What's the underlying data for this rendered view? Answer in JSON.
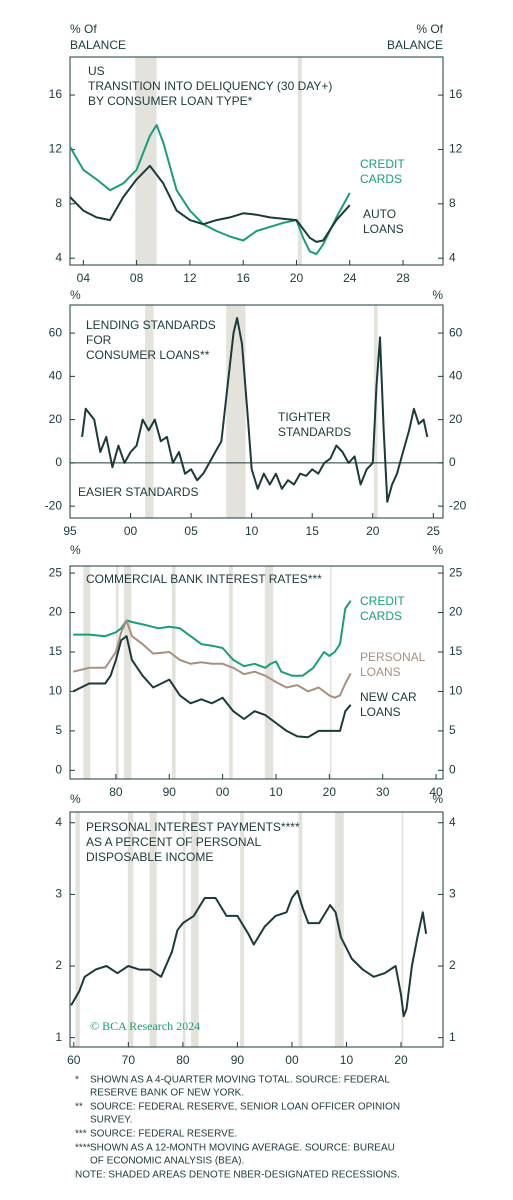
{
  "chart_data": [
    {
      "type": "line",
      "title": [
        "US",
        "TRANSITION INTO DELIQUENCY (30 DAY+)",
        "BY CONSUMER LOAN TYPE*"
      ],
      "y_label": [
        "% Of",
        "BALANCE"
      ],
      "y2_label": [
        "% Of",
        "BALANCE"
      ],
      "xlim": [
        2003,
        2031
      ],
      "xticks": [
        {
          "value": 2004,
          "label": "04"
        },
        {
          "value": 2008,
          "label": "08"
        },
        {
          "value": 2012,
          "label": "12"
        },
        {
          "value": 2016,
          "label": "16"
        },
        {
          "value": 2020,
          "label": "20"
        },
        {
          "value": 2024,
          "label": "24"
        },
        {
          "value": 2028,
          "label": "28"
        }
      ],
      "ylim": [
        3.5,
        18.8
      ],
      "yticks": [
        4,
        8,
        12,
        16
      ],
      "y2lim": [
        3.5,
        18.8
      ],
      "y2ticks": [
        4,
        8,
        12,
        16
      ],
      "recession_color": "#e3e3dc",
      "recessions": [
        [
          2007.9,
          2009.5
        ],
        [
          2020.1,
          2020.4
        ]
      ],
      "series": [
        {
          "name": [
            "CREDIT",
            "CARDS"
          ],
          "color": "#1a9e7a",
          "x": [
            2003,
            2004,
            2005,
            2006,
            2007,
            2008,
            2009,
            2009.5,
            2010,
            2011,
            2012,
            2013,
            2014,
            2015,
            2016,
            2017,
            2018,
            2019,
            2020,
            2020.5,
            2021,
            2021.5,
            2022,
            2023,
            2024
          ],
          "values": [
            12.2,
            10.5,
            9.8,
            9.0,
            9.5,
            10.5,
            13.0,
            13.8,
            12.5,
            9.0,
            7.5,
            6.5,
            6.0,
            5.6,
            5.3,
            6.0,
            6.3,
            6.6,
            6.8,
            5.5,
            4.5,
            4.3,
            5.0,
            7.0,
            8.8
          ]
        },
        {
          "name": [
            "AUTO",
            "LOANS"
          ],
          "color": "#1b3a3a",
          "x": [
            2003,
            2004,
            2005,
            2006,
            2007,
            2008,
            2009,
            2010,
            2011,
            2012,
            2013,
            2014,
            2015,
            2016,
            2017,
            2018,
            2019,
            2020,
            2021,
            2021.5,
            2022,
            2023,
            2024
          ],
          "values": [
            8.5,
            7.5,
            7.0,
            6.8,
            8.5,
            9.8,
            10.8,
            9.5,
            7.5,
            6.8,
            6.5,
            6.8,
            7.0,
            7.3,
            7.2,
            7.0,
            6.9,
            6.8,
            5.5,
            5.2,
            5.3,
            6.8,
            7.9
          ]
        }
      ],
      "annotations": []
    },
    {
      "type": "line",
      "title": [
        "LENDING STANDARDS",
        "FOR",
        "CONSUMER LOANS**"
      ],
      "y_label": [
        "%"
      ],
      "y2_label": [
        "%"
      ],
      "xlim": [
        1995,
        2025.8
      ],
      "xticks": [
        1995,
        2000,
        2005,
        2010,
        2015,
        2020,
        2025
      ],
      "xtick_labels": [
        "95",
        "00",
        "05",
        "10",
        "15",
        "20",
        "25"
      ],
      "ylim": [
        -25.5,
        73
      ],
      "yticks": [
        -20,
        0,
        20,
        40,
        60
      ],
      "y2lim": [
        -25.5,
        73
      ],
      "y2ticks": [
        -20,
        0,
        20,
        40,
        60
      ],
      "zero_line": true,
      "recession_color": "#e3e3dc",
      "recessions": [
        [
          2001.2,
          2001.9
        ],
        [
          2007.9,
          2009.5
        ],
        [
          2020.1,
          2020.4
        ]
      ],
      "series": [
        {
          "color": "#1b3a3a",
          "x": [
            1996,
            1996.3,
            1997,
            1997.5,
            1998,
            1998.5,
            1999,
            1999.5,
            2000,
            2000.5,
            2001,
            2001.5,
            2002,
            2002.5,
            2003,
            2003.5,
            2004,
            2004.5,
            2005,
            2005.5,
            2006,
            2006.5,
            2007,
            2007.5,
            2008,
            2008.5,
            2008.8,
            2009.2,
            2009.7,
            2010,
            2010.5,
            2011,
            2011.5,
            2012,
            2012.5,
            2013,
            2013.5,
            2014,
            2014.5,
            2015,
            2015.5,
            2016,
            2016.5,
            2017,
            2017.5,
            2018,
            2018.5,
            2019,
            2019.5,
            2020,
            2020.3,
            2020.6,
            2020.9,
            2021.2,
            2021.6,
            2022,
            2022.5,
            2023,
            2023.4,
            2023.8,
            2024.2,
            2024.5
          ],
          "values": [
            12,
            25,
            20,
            5,
            12,
            -2,
            8,
            0,
            5,
            8,
            20,
            15,
            20,
            10,
            12,
            0,
            5,
            -5,
            -3,
            -8,
            -5,
            0,
            5,
            10,
            35,
            60,
            67,
            55,
            20,
            -3,
            -12,
            -5,
            -10,
            -5,
            -12,
            -8,
            -10,
            -5,
            -6,
            -3,
            -5,
            0,
            2,
            8,
            5,
            0,
            3,
            -10,
            -3,
            0,
            35,
            58,
            15,
            -18,
            -10,
            -5,
            5,
            15,
            25,
            18,
            20,
            12
          ]
        }
      ],
      "annotations": [
        {
          "text": [
            "TIGHTER",
            "STANDARDS"
          ]
        },
        {
          "text": [
            "EASIER STANDARDS"
          ]
        }
      ]
    },
    {
      "type": "line",
      "title": [
        "COMMERCIAL BANK INTEREST RATES***"
      ],
      "y_label": [
        "%"
      ],
      "y2_label": [
        "%"
      ],
      "xlim": [
        1971.4,
        2041.3
      ],
      "xticks": [
        1980,
        1990,
        2000,
        2010,
        2020,
        2030,
        2040
      ],
      "xtick_labels": [
        "80",
        "90",
        "00",
        "10",
        "20",
        "30",
        "40"
      ],
      "ylim": [
        -1.1,
        25.9
      ],
      "yticks": [
        0,
        5,
        10,
        15,
        20,
        25
      ],
      "y2lim": [
        -1.1,
        25.9
      ],
      "y2ticks": [
        0,
        5,
        10,
        15,
        20,
        25
      ],
      "recession_color": "#e3e3dc",
      "recessions": [
        [
          1973.9,
          1975.2
        ],
        [
          1980,
          1980.5
        ],
        [
          1981.5,
          1982.9
        ],
        [
          1990.5,
          1991.2
        ],
        [
          2001.2,
          2001.9
        ],
        [
          2007.9,
          2009.5
        ],
        [
          2020.1,
          2020.4
        ]
      ],
      "series": [
        {
          "name": [
            "CREDIT",
            "CARDS"
          ],
          "color": "#1a9e7a",
          "x": [
            1972,
            1975,
            1978,
            1980,
            1981,
            1982,
            1983,
            1985,
            1988,
            1990,
            1992,
            1994,
            1996,
            1998,
            2000,
            2002,
            2004,
            2006,
            2008,
            2009,
            2010,
            2011,
            2013,
            2015,
            2017,
            2019,
            2020,
            2021,
            2022,
            2023,
            2024
          ],
          "values": [
            17.2,
            17.2,
            17,
            17.5,
            18,
            19,
            18.8,
            18.5,
            18,
            18.2,
            18,
            17,
            16,
            15.8,
            15.5,
            14,
            13.2,
            13.5,
            13,
            13.5,
            13.8,
            12.5,
            12,
            12,
            13,
            15,
            14.5,
            15,
            16,
            20.5,
            21.5
          ]
        },
        {
          "name": [
            "PERSONAL",
            "LOANS"
          ],
          "color": "#a89080",
          "x": [
            1972,
            1975,
            1978,
            1980,
            1981,
            1982,
            1983,
            1985,
            1987,
            1990,
            1992,
            1994,
            1996,
            1998,
            2000,
            2002,
            2004,
            2006,
            2008,
            2010,
            2012,
            2014,
            2016,
            2018,
            2020,
            2021,
            2022,
            2023,
            2024
          ],
          "values": [
            12.5,
            13,
            13,
            15,
            17.5,
            19,
            17,
            16,
            14.8,
            15,
            14,
            13.5,
            13.7,
            13.5,
            13.5,
            13,
            12.2,
            12.5,
            12,
            11.2,
            10.5,
            10.8,
            10,
            10.5,
            9.5,
            9.2,
            9.5,
            11,
            12.3
          ]
        },
        {
          "name": [
            "NEW CAR",
            "LOANS"
          ],
          "color": "#1b3a3a",
          "x": [
            1972,
            1975,
            1978,
            1979,
            1980,
            1981,
            1982,
            1983,
            1985,
            1987,
            1990,
            1992,
            1994,
            1996,
            1998,
            2000,
            2002,
            2004,
            2006,
            2008,
            2010,
            2012,
            2014,
            2016,
            2018,
            2020,
            2021,
            2022,
            2023,
            2024
          ],
          "values": [
            10,
            11,
            11,
            12,
            14,
            16.5,
            17,
            14,
            12,
            10.5,
            11.5,
            9.5,
            8.5,
            9,
            8.5,
            9.2,
            7.5,
            6.5,
            7.5,
            7,
            6,
            5,
            4.3,
            4.2,
            5,
            5,
            5,
            5,
            7.5,
            8.3
          ]
        }
      ],
      "annotations": []
    },
    {
      "type": "line",
      "title": [
        "PERSONAL INTEREST PAYMENTS****",
        "AS A PERCENT OF PERSONAL",
        "DISPOSABLE INCOME"
      ],
      "y_label": [
        "%"
      ],
      "y2_label": [
        "%"
      ],
      "xlim": [
        1959.3,
        2027.7
      ],
      "xticks": [
        1960,
        1970,
        1980,
        1990,
        2000,
        2010,
        2020
      ],
      "xtick_labels": [
        "60",
        "70",
        "80",
        "90",
        "00",
        "10",
        "20"
      ],
      "ylim": [
        0.87,
        4.15
      ],
      "yticks": [
        1,
        2,
        3,
        4
      ],
      "y2lim": [
        0.87,
        4.15
      ],
      "y2ticks": [
        1,
        2,
        3,
        4
      ],
      "recession_color": "#e3e3dc",
      "recessions": [
        [
          1960.3,
          1961.1
        ],
        [
          1969.9,
          1970.9
        ],
        [
          1973.9,
          1975.2
        ],
        [
          1980,
          1980.5
        ],
        [
          1981.5,
          1982.9
        ],
        [
          1990.5,
          1991.2
        ],
        [
          2001.2,
          2001.9
        ],
        [
          2007.9,
          2009.5
        ],
        [
          2020.1,
          2020.4
        ]
      ],
      "series": [
        {
          "color": "#1b3a3a",
          "x": [
            1959.5,
            1961,
            1962,
            1964,
            1966,
            1968,
            1970,
            1972,
            1974,
            1976,
            1978,
            1979,
            1980,
            1982,
            1984,
            1986,
            1988,
            1990,
            1992,
            1993,
            1995,
            1997,
            1999,
            2000,
            2001,
            2002,
            2003,
            2005,
            2007,
            2008,
            2009,
            2011,
            2013,
            2015,
            2017,
            2019,
            2020,
            2020.5,
            2021,
            2022,
            2023,
            2024,
            2024.6
          ],
          "values": [
            1.45,
            1.65,
            1.85,
            1.95,
            2.0,
            1.9,
            2.0,
            1.95,
            1.95,
            1.85,
            2.2,
            2.5,
            2.6,
            2.7,
            2.95,
            2.95,
            2.7,
            2.7,
            2.45,
            2.3,
            2.55,
            2.7,
            2.75,
            2.95,
            3.05,
            2.8,
            2.6,
            2.6,
            2.85,
            2.75,
            2.4,
            2.1,
            1.95,
            1.85,
            1.9,
            2.0,
            1.6,
            1.3,
            1.4,
            2.0,
            2.4,
            2.75,
            2.45
          ]
        }
      ],
      "annotations": [
        {
          "text": [
            "© BCA Research 2024"
          ],
          "color": "#1a9e7a"
        }
      ]
    }
  ],
  "footnotes": [
    {
      "marker": "*",
      "lines": [
        "SHOWN AS A 4-QUARTER MOVING TOTAL. SOURCE: FEDERAL",
        "RESERVE BANK OF NEW YORK."
      ]
    },
    {
      "marker": "**",
      "lines": [
        "SOURCE: FEDERAL RESERVE, SENIOR LOAN OFFICER OPINION",
        "SURVEY."
      ]
    },
    {
      "marker": "***",
      "lines": [
        "SOURCE: FEDERAL RESERVE."
      ]
    },
    {
      "marker": "****",
      "lines": [
        "SHOWN AS A 12-MONTH MOVING AVERAGE. SOURCE: BUREAU",
        "OF ECONOMIC ANALYSIS (BEA)."
      ]
    }
  ],
  "note": "NOTE: SHADED AREAS DENOTE NBER-DESIGNATED RECESSIONS."
}
